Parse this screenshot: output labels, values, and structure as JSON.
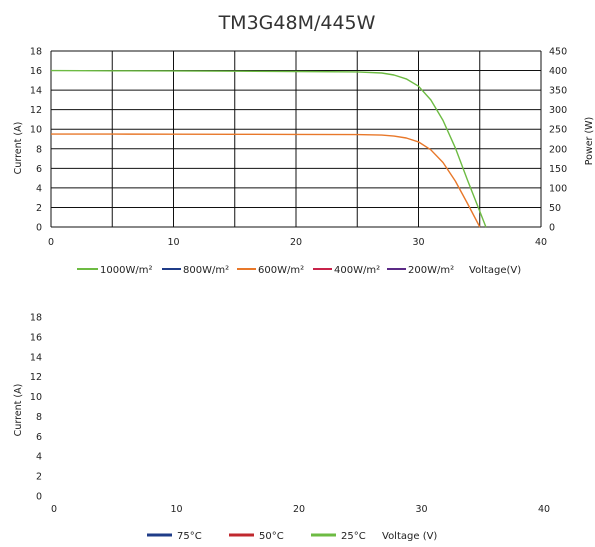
{
  "colors": {
    "c1000": "#6dbb43",
    "c800": "#1f3c88",
    "c600": "#e8782a",
    "c400": "#c8234a",
    "c200": "#5b2a86",
    "t75": "#1f3c88",
    "t50": "#c0282e",
    "t25": "#6dbb43",
    "grid": "#111111"
  },
  "chart_data": [
    {
      "type": "line",
      "title": "TM3G48M/445W",
      "xlabel": "Voltage(V)",
      "ylabel": "Current (A)",
      "y2label": "Power (W)",
      "xlim": [
        0,
        40
      ],
      "ylim": [
        0,
        18
      ],
      "y2lim": [
        0,
        450
      ],
      "xticks": [
        0,
        10,
        20,
        30,
        40
      ],
      "yticks": [
        0,
        2,
        4,
        6,
        8,
        10,
        12,
        14,
        16,
        18
      ],
      "y2ticks": [
        0,
        50,
        100,
        150,
        200,
        250,
        300,
        350,
        400,
        450
      ],
      "grid": true,
      "legend": "bottom",
      "legend_entries": [
        "1000W/m²",
        "800W/m²",
        "600W/m²",
        "400W/m²",
        "200W/m²"
      ],
      "series": [
        {
          "name": "1000W/m²",
          "color_key": "c1000",
          "x": [
            0,
            5,
            10,
            15,
            20,
            25,
            27,
            28,
            29,
            30,
            31,
            32,
            33,
            34,
            35,
            35.5
          ],
          "y": [
            16.0,
            15.98,
            15.96,
            15.93,
            15.9,
            15.86,
            15.75,
            15.55,
            15.15,
            14.4,
            13.0,
            10.9,
            8.1,
            4.8,
            1.6,
            0
          ]
        },
        {
          "name": "600W/m²",
          "color_key": "c600",
          "x": [
            0,
            5,
            10,
            15,
            20,
            25,
            27,
            28,
            29,
            30,
            31,
            32,
            33,
            34,
            35
          ],
          "y": [
            9.5,
            9.5,
            9.49,
            9.48,
            9.47,
            9.45,
            9.4,
            9.3,
            9.1,
            8.7,
            7.9,
            6.6,
            4.7,
            2.4,
            0
          ]
        },
        {
          "name": "800W/m²",
          "color_key": "c800",
          "x": [],
          "y": []
        },
        {
          "name": "400W/m²",
          "color_key": "c400",
          "x": [],
          "y": []
        },
        {
          "name": "200W/m²",
          "color_key": "c200",
          "x": [],
          "y": []
        }
      ]
    },
    {
      "type": "line",
      "xlabel": "Voltage (V)",
      "ylabel": "Current (A)",
      "xlim": [
        0,
        40
      ],
      "ylim": [
        0,
        18
      ],
      "xticks": [
        0,
        10,
        20,
        30,
        40
      ],
      "yticks": [
        0,
        2,
        4,
        6,
        8,
        10,
        12,
        14,
        16,
        18
      ],
      "grid": false,
      "legend": "bottom",
      "legend_entries": [
        "75°C",
        "50°C",
        "25°C"
      ],
      "series": [
        {
          "name": "75°C",
          "color_key": "t75",
          "x": [],
          "y": []
        },
        {
          "name": "50°C",
          "color_key": "t50",
          "x": [],
          "y": []
        },
        {
          "name": "25°C",
          "color_key": "t25",
          "x": [],
          "y": []
        }
      ]
    }
  ]
}
